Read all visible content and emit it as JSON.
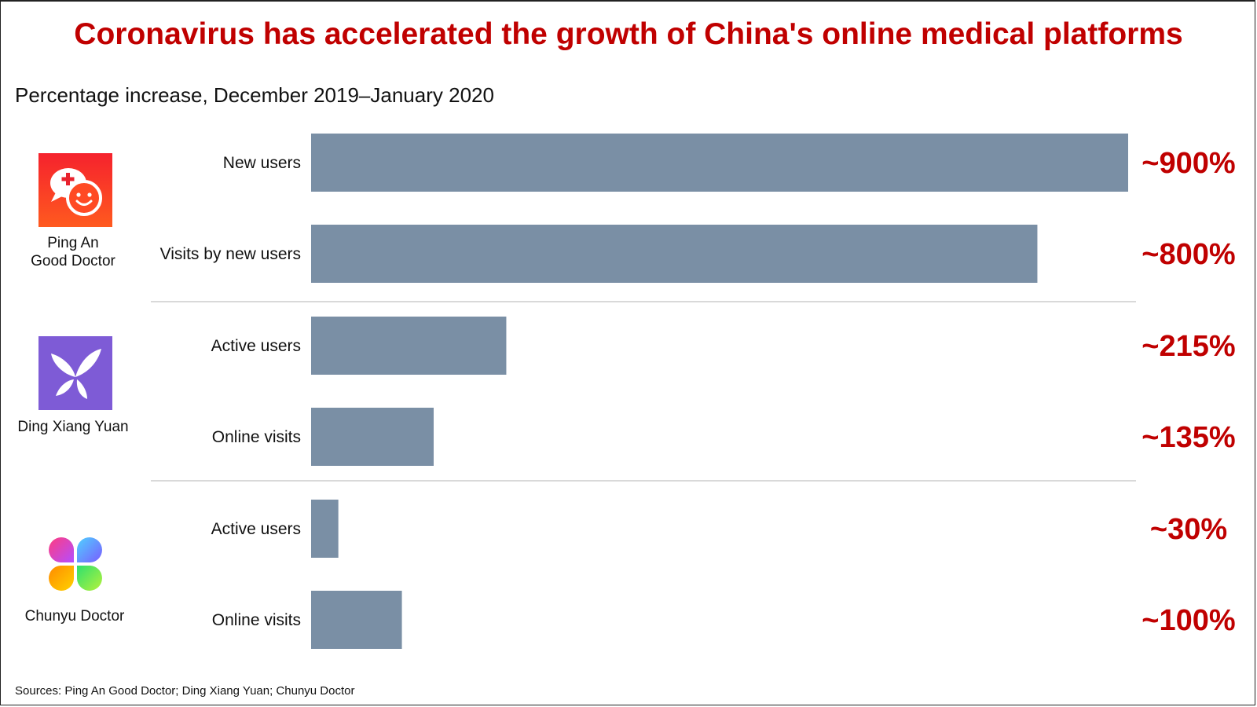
{
  "title": "Coronavirus has accelerated the growth of China's online medical platforms",
  "subtitle": "Percentage increase, December 2019–January 2020",
  "source": "Sources: Ping An Good Doctor; Ding Xiang Yuan; Chunyu Doctor",
  "colors": {
    "title": "#c00000",
    "bar": "#7a8fa5",
    "value_label": "#c00000"
  },
  "groups": [
    {
      "name": "Ping An\nGood Doctor",
      "icon": "ping-an-good-doctor-logo"
    },
    {
      "name": "Ding Xiang Yuan",
      "icon": "ding-xiang-yuan-logo"
    },
    {
      "name": "Chunyu Doctor",
      "icon": "chunyu-doctor-logo"
    }
  ],
  "chart_data": {
    "type": "bar",
    "orientation": "horizontal",
    "categories": [
      "New users",
      "Visits by new users",
      "Active users",
      "Online visits",
      "Active users",
      "Online visits"
    ],
    "category_groups": [
      "Ping An\nGood Doctor",
      "Ping An\nGood Doctor",
      "Ding Xiang Yuan",
      "Ding Xiang Yuan",
      "Chunyu Doctor",
      "Chunyu Doctor"
    ],
    "values": [
      900,
      800,
      215,
      135,
      30,
      100
    ],
    "value_labels": [
      "~900%",
      "~800%",
      "~215%",
      "~135%",
      "~30%",
      "~100%"
    ],
    "title": "Coronavirus has accelerated the growth of China's online medical platforms",
    "subtitle": "Percentage increase, December 2019–January 2020",
    "xlim": [
      0,
      900
    ],
    "grid": false,
    "legend": "none"
  }
}
